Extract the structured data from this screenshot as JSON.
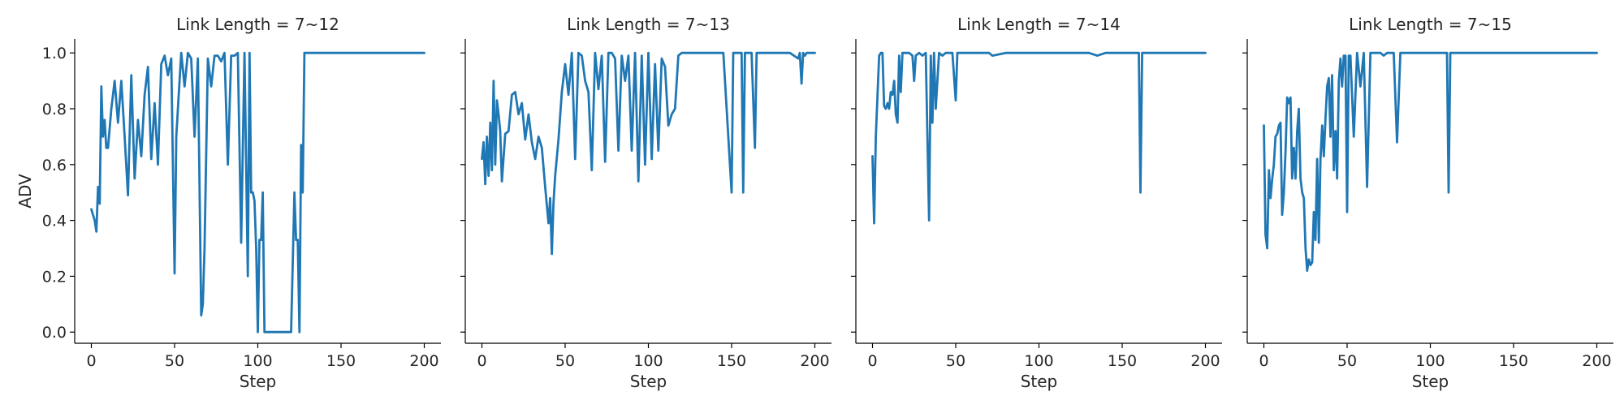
{
  "chart_data": [
    {
      "type": "line",
      "title": "Link Length = 7~12",
      "xlabel": "Step",
      "ylabel": "ADV",
      "xlim": [
        -10,
        210
      ],
      "ylim": [
        -0.04,
        1.05
      ],
      "xticks": [
        0,
        50,
        100,
        150,
        200
      ],
      "yticks": [
        0.0,
        0.2,
        0.4,
        0.6,
        0.8,
        1.0
      ],
      "color": "#1f77b4",
      "series": [
        {
          "x": [
            0,
            1,
            2,
            3,
            4,
            5,
            6,
            7,
            8,
            9,
            10,
            12,
            14,
            16,
            18,
            20,
            22,
            24,
            26,
            28,
            30,
            32,
            34,
            36,
            38,
            40,
            42,
            44,
            46,
            48,
            50,
            51,
            52,
            54,
            56,
            58,
            60,
            62,
            64,
            66,
            67,
            68,
            70,
            72,
            74,
            76,
            78,
            80,
            82,
            84,
            86,
            88,
            90,
            92,
            94,
            95,
            96,
            97,
            98,
            99,
            100,
            101,
            102,
            103,
            104,
            105,
            106,
            108,
            110,
            112,
            114,
            116,
            118,
            120,
            122,
            123,
            124,
            125,
            126,
            127,
            128,
            130,
            135,
            140,
            145,
            150,
            160,
            170,
            180,
            190,
            200
          ],
          "y": [
            0.44,
            0.42,
            0.4,
            0.36,
            0.52,
            0.46,
            0.88,
            0.7,
            0.76,
            0.66,
            0.66,
            0.8,
            0.9,
            0.75,
            0.9,
            0.7,
            0.49,
            0.92,
            0.55,
            0.76,
            0.63,
            0.85,
            0.95,
            0.62,
            0.82,
            0.6,
            0.96,
            0.99,
            0.92,
            0.98,
            0.21,
            0.7,
            0.8,
            1.0,
            0.88,
            1.0,
            0.98,
            0.7,
            0.98,
            0.06,
            0.1,
            0.3,
            0.98,
            0.88,
            0.99,
            0.99,
            0.97,
            1.0,
            0.6,
            0.99,
            0.99,
            1.0,
            0.32,
            1.0,
            0.2,
            1.0,
            0.5,
            0.5,
            0.47,
            0.3,
            0.0,
            0.33,
            0.33,
            0.5,
            0.0,
            0.0,
            0.0,
            0.0,
            0.0,
            0.0,
            0.0,
            0.0,
            0.0,
            0.0,
            0.5,
            0.33,
            0.33,
            0.0,
            0.67,
            0.5,
            1.0,
            1.0,
            1.0,
            1.0,
            1.0,
            1.0,
            1.0,
            1.0,
            1.0,
            1.0,
            1.0
          ]
        }
      ]
    },
    {
      "type": "line",
      "title": "Link Length = 7~13",
      "xlabel": "Step",
      "ylabel": "",
      "xlim": [
        -10,
        210
      ],
      "ylim": [
        -0.04,
        1.05
      ],
      "xticks": [
        0,
        50,
        100,
        150,
        200
      ],
      "yticks": [
        0.0,
        0.2,
        0.4,
        0.6,
        0.8,
        1.0
      ],
      "color": "#1f77b4",
      "series": [
        {
          "x": [
            0,
            1,
            2,
            3,
            4,
            5,
            6,
            7,
            8,
            9,
            10,
            11,
            12,
            14,
            16,
            18,
            20,
            22,
            24,
            26,
            28,
            30,
            32,
            34,
            36,
            38,
            40,
            41,
            42,
            43,
            44,
            46,
            48,
            50,
            52,
            54,
            56,
            58,
            60,
            62,
            64,
            66,
            68,
            70,
            72,
            74,
            76,
            78,
            80,
            82,
            84,
            86,
            88,
            90,
            92,
            94,
            96,
            98,
            100,
            102,
            104,
            106,
            108,
            110,
            112,
            114,
            116,
            118,
            120,
            122,
            124,
            126,
            130,
            135,
            140,
            145,
            150,
            151,
            152,
            153,
            154,
            155,
            156,
            157,
            158,
            160,
            162,
            164,
            165,
            166,
            170,
            175,
            180,
            185,
            190,
            191,
            192,
            193,
            194,
            195,
            196,
            198,
            200
          ],
          "y": [
            0.62,
            0.68,
            0.53,
            0.7,
            0.56,
            0.75,
            0.58,
            0.9,
            0.6,
            0.83,
            0.78,
            0.72,
            0.54,
            0.71,
            0.72,
            0.85,
            0.86,
            0.78,
            0.82,
            0.69,
            0.78,
            0.68,
            0.62,
            0.7,
            0.66,
            0.52,
            0.39,
            0.48,
            0.28,
            0.46,
            0.56,
            0.69,
            0.86,
            0.96,
            0.85,
            1.0,
            0.62,
            1.0,
            0.99,
            0.9,
            0.86,
            0.58,
            1.0,
            0.87,
            0.99,
            0.61,
            1.0,
            1.0,
            0.98,
            0.65,
            0.99,
            0.9,
            0.99,
            0.65,
            1.0,
            0.54,
            0.99,
            0.6,
            1.0,
            0.62,
            0.96,
            0.65,
            0.98,
            0.95,
            0.74,
            0.78,
            0.8,
            0.99,
            1.0,
            1.0,
            1.0,
            1.0,
            1.0,
            1.0,
            1.0,
            1.0,
            0.5,
            1.0,
            1.0,
            1.0,
            1.0,
            1.0,
            1.0,
            0.5,
            1.0,
            1.0,
            1.0,
            0.66,
            1.0,
            1.0,
            1.0,
            1.0,
            1.0,
            1.0,
            0.98,
            1.0,
            0.89,
            1.0,
            0.99,
            1.0,
            1.0,
            1.0,
            1.0
          ]
        }
      ]
    },
    {
      "type": "line",
      "title": "Link Length = 7~14",
      "xlabel": "Step",
      "ylabel": "",
      "xlim": [
        -10,
        210
      ],
      "ylim": [
        -0.04,
        1.05
      ],
      "xticks": [
        0,
        50,
        100,
        150,
        200
      ],
      "yticks": [
        0.0,
        0.2,
        0.4,
        0.6,
        0.8,
        1.0
      ],
      "color": "#1f77b4",
      "series": [
        {
          "x": [
            0,
            1,
            2,
            3,
            4,
            5,
            6,
            7,
            8,
            9,
            10,
            11,
            12,
            13,
            14,
            15,
            16,
            17,
            18,
            19,
            20,
            22,
            24,
            25,
            26,
            28,
            30,
            32,
            34,
            35,
            36,
            37,
            38,
            40,
            42,
            44,
            46,
            48,
            50,
            51,
            52,
            55,
            60,
            70,
            72,
            80,
            90,
            100,
            110,
            120,
            130,
            135,
            140,
            150,
            159,
            160,
            161,
            162,
            170,
            180,
            190,
            200
          ],
          "y": [
            0.63,
            0.39,
            0.7,
            0.85,
            0.99,
            1.0,
            1.0,
            0.81,
            0.8,
            0.82,
            0.8,
            0.86,
            0.85,
            0.9,
            0.78,
            0.75,
            0.99,
            0.86,
            1.0,
            1.0,
            1.0,
            1.0,
            0.99,
            0.9,
            0.99,
            1.0,
            0.99,
            1.0,
            0.4,
            0.99,
            0.75,
            1.0,
            0.8,
            1.0,
            0.99,
            1.0,
            1.0,
            1.0,
            0.83,
            1.0,
            1.0,
            1.0,
            1.0,
            1.0,
            0.99,
            1.0,
            1.0,
            1.0,
            1.0,
            1.0,
            1.0,
            0.99,
            1.0,
            1.0,
            1.0,
            1.0,
            0.5,
            1.0,
            1.0,
            1.0,
            1.0,
            1.0
          ]
        }
      ]
    },
    {
      "type": "line",
      "title": "Link Length = 7~15",
      "xlabel": "Step",
      "ylabel": "",
      "xlim": [
        -10,
        210
      ],
      "ylim": [
        -0.04,
        1.05
      ],
      "xticks": [
        0,
        50,
        100,
        150,
        200
      ],
      "yticks": [
        0.0,
        0.2,
        0.4,
        0.6,
        0.8,
        1.0
      ],
      "color": "#1f77b4",
      "series": [
        {
          "x": [
            0,
            1,
            2,
            3,
            4,
            5,
            6,
            7,
            8,
            9,
            10,
            11,
            12,
            13,
            14,
            15,
            16,
            17,
            18,
            19,
            20,
            21,
            22,
            23,
            24,
            25,
            26,
            27,
            28,
            29,
            30,
            31,
            32,
            33,
            34,
            35,
            36,
            37,
            38,
            39,
            40,
            41,
            42,
            43,
            44,
            45,
            46,
            47,
            48,
            49,
            50,
            51,
            52,
            54,
            56,
            58,
            60,
            62,
            64,
            66,
            68,
            70,
            72,
            74,
            76,
            78,
            80,
            82,
            84,
            86,
            88,
            90,
            92,
            94,
            96,
            98,
            100,
            102,
            104,
            106,
            108,
            110,
            111,
            112,
            113,
            114,
            116,
            120,
            130,
            140,
            150,
            160,
            170,
            180,
            190,
            200
          ],
          "y": [
            0.74,
            0.35,
            0.3,
            0.58,
            0.48,
            0.55,
            0.6,
            0.7,
            0.71,
            0.74,
            0.75,
            0.42,
            0.5,
            0.65,
            0.84,
            0.82,
            0.84,
            0.55,
            0.66,
            0.55,
            0.72,
            0.8,
            0.55,
            0.5,
            0.48,
            0.3,
            0.22,
            0.26,
            0.24,
            0.25,
            0.43,
            0.33,
            0.62,
            0.32,
            0.62,
            0.74,
            0.63,
            0.76,
            0.88,
            0.91,
            0.7,
            0.92,
            0.58,
            0.72,
            0.55,
            0.9,
            0.98,
            0.88,
            0.99,
            0.99,
            0.43,
            0.99,
            0.99,
            0.7,
            1.0,
            0.88,
            1.0,
            0.52,
            1.0,
            1.0,
            1.0,
            1.0,
            0.99,
            1.0,
            1.0,
            1.0,
            0.68,
            1.0,
            1.0,
            1.0,
            1.0,
            1.0,
            1.0,
            1.0,
            1.0,
            1.0,
            1.0,
            1.0,
            1.0,
            1.0,
            1.0,
            1.0,
            0.5,
            1.0,
            1.0,
            1.0,
            1.0,
            1.0,
            1.0,
            1.0,
            1.0,
            1.0,
            1.0,
            1.0,
            1.0,
            1.0
          ]
        }
      ]
    }
  ]
}
